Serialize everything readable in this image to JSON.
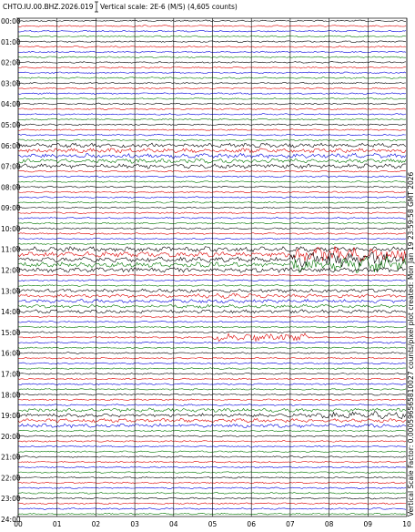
{
  "header": {
    "station": "CHTO.IU.00.BHZ.2026.019",
    "scale": "Vertical scale: 2E-6 (M/S) (4,605 counts)"
  },
  "y_labels": [
    "00:00",
    "01:00",
    "02:00",
    "03:00",
    "04:00",
    "05:00",
    "06:00",
    "07:00",
    "08:00",
    "09:00",
    "10:00",
    "11:00",
    "12:00",
    "13:00",
    "14:00",
    "15:00",
    "16:00",
    "17:00",
    "18:00",
    "19:00",
    "20:00",
    "21:00",
    "22:00",
    "23:00",
    "24:00"
  ],
  "x_labels": [
    "00",
    "01",
    "02",
    "03",
    "04",
    "05",
    "06",
    "07",
    "08",
    "09",
    "10"
  ],
  "side_note": "Vertical Scale Factor: 0.000596565810027 counts/pixel plot created: Mon Jan 19 23:59:58 GMT 2026"
}
